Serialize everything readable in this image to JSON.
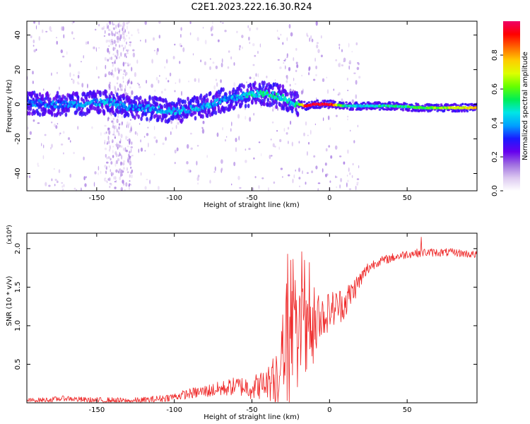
{
  "figure": {
    "title": "C2E1.2023.222.16.30.R24"
  },
  "colors": {
    "snr_line": "#ee2222",
    "colormap": [
      "#ffffff",
      "#dcc8f0",
      "#a070e0",
      "#6600ee",
      "#1a1aff",
      "#00a0ff",
      "#00e6e6",
      "#00ee55",
      "#66ff00",
      "#ddff00",
      "#ffcc00",
      "#ff6600",
      "#ff0000",
      "#ee0066"
    ]
  },
  "chart_data": [
    {
      "type": "heatmap",
      "title": "",
      "xlabel": "Height of straight line (km)",
      "ylabel": "Frequency (Hz)",
      "xlim": [
        -195,
        95
      ],
      "ylim": [
        -50,
        48
      ],
      "xticks": [
        "-150",
        "-100",
        "-50",
        "0",
        "50"
      ],
      "xtick_values": [
        -150,
        -100,
        -50,
        0,
        50
      ],
      "yticks": [
        "40",
        "20",
        "0",
        "-20",
        "-40"
      ],
      "ytick_values": [
        40,
        20,
        0,
        -20,
        -40
      ],
      "colorbar": {
        "label": "Normalized spectral amplitude",
        "range": [
          0,
          1
        ],
        "ticks": [
          "0.0",
          "0.2",
          "0.4",
          "0.6",
          "0.8"
        ],
        "tick_values": [
          0.0,
          0.2,
          0.4,
          0.6,
          0.8
        ]
      },
      "ridge": {
        "x": [
          -195,
          -180,
          -165,
          -150,
          -140,
          -130,
          -120,
          -110,
          -100,
          -90,
          -80,
          -70,
          -60,
          -50,
          -40,
          -35,
          -30,
          -25,
          -20,
          -15,
          -10,
          -5,
          0,
          10,
          20,
          40,
          60,
          80,
          95
        ],
        "y": [
          1,
          0,
          0,
          1,
          1,
          -2,
          -2,
          -3,
          -4,
          -3,
          -1,
          2,
          4,
          6,
          6,
          5,
          4,
          1,
          0,
          -1,
          0,
          0,
          0,
          -1,
          -1,
          -1,
          -2,
          -2,
          -2
        ],
        "amplitude": [
          0.35,
          0.35,
          0.35,
          0.4,
          0.4,
          0.35,
          0.35,
          0.4,
          0.4,
          0.4,
          0.4,
          0.4,
          0.4,
          0.45,
          0.5,
          0.5,
          0.45,
          0.45,
          0.5,
          0.95,
          0.95,
          0.95,
          0.95,
          0.45,
          0.45,
          0.5,
          0.55,
          0.7,
          0.75
        ]
      }
    },
    {
      "type": "line",
      "title": "",
      "xlabel": "Height of straight line (km)",
      "ylabel": "SNR (10 * v/v)",
      "y_multiplier": "(x10⁴)",
      "xlim": [
        -195,
        95
      ],
      "ylim": [
        0,
        2.2
      ],
      "xticks": [
        "-150",
        "-100",
        "-50",
        "0",
        "50"
      ],
      "xtick_values": [
        -150,
        -100,
        -50,
        0,
        50
      ],
      "yticks": [
        "0.5",
        "1.0",
        "1.5",
        "2.0"
      ],
      "ytick_values": [
        0.5,
        1.0,
        1.5,
        2.0
      ],
      "baseline": {
        "x": [
          -195,
          -180,
          -170,
          -160,
          -150,
          -140,
          -130,
          -120,
          -110,
          -100,
          -90,
          -80,
          -70,
          -60,
          -50,
          -40,
          -35,
          -30,
          -28,
          -25,
          -20,
          -15,
          -10,
          -5,
          0,
          5,
          10,
          15,
          20,
          25,
          30,
          40,
          50,
          60,
          70,
          80,
          95
        ],
        "y": [
          0.03,
          0.04,
          0.06,
          0.04,
          0.03,
          0.03,
          0.02,
          0.03,
          0.05,
          0.08,
          0.12,
          0.15,
          0.18,
          0.22,
          0.2,
          0.25,
          0.35,
          0.6,
          0.7,
          0.8,
          0.75,
          0.8,
          0.9,
          1.1,
          1.2,
          1.25,
          1.3,
          1.45,
          1.6,
          1.75,
          1.82,
          1.88,
          1.93,
          1.95,
          1.95,
          1.95,
          1.92
        ]
      },
      "noise_amplitude": {
        "x": [
          -195,
          -100,
          -60,
          -40,
          -30,
          -25,
          -20,
          -15,
          -10,
          -5,
          0,
          10,
          20,
          30,
          95
        ],
        "y": [
          0.03,
          0.05,
          0.12,
          0.2,
          0.6,
          0.9,
          0.7,
          0.6,
          0.45,
          0.3,
          0.25,
          0.22,
          0.12,
          0.06,
          0.05
        ]
      },
      "spikes": {
        "x": [
          -27,
          -25,
          -18,
          -16,
          -13,
          59
        ],
        "y": [
          1.93,
          1.85,
          1.96,
          1.85,
          1.82,
          2.15
        ]
      }
    }
  ]
}
